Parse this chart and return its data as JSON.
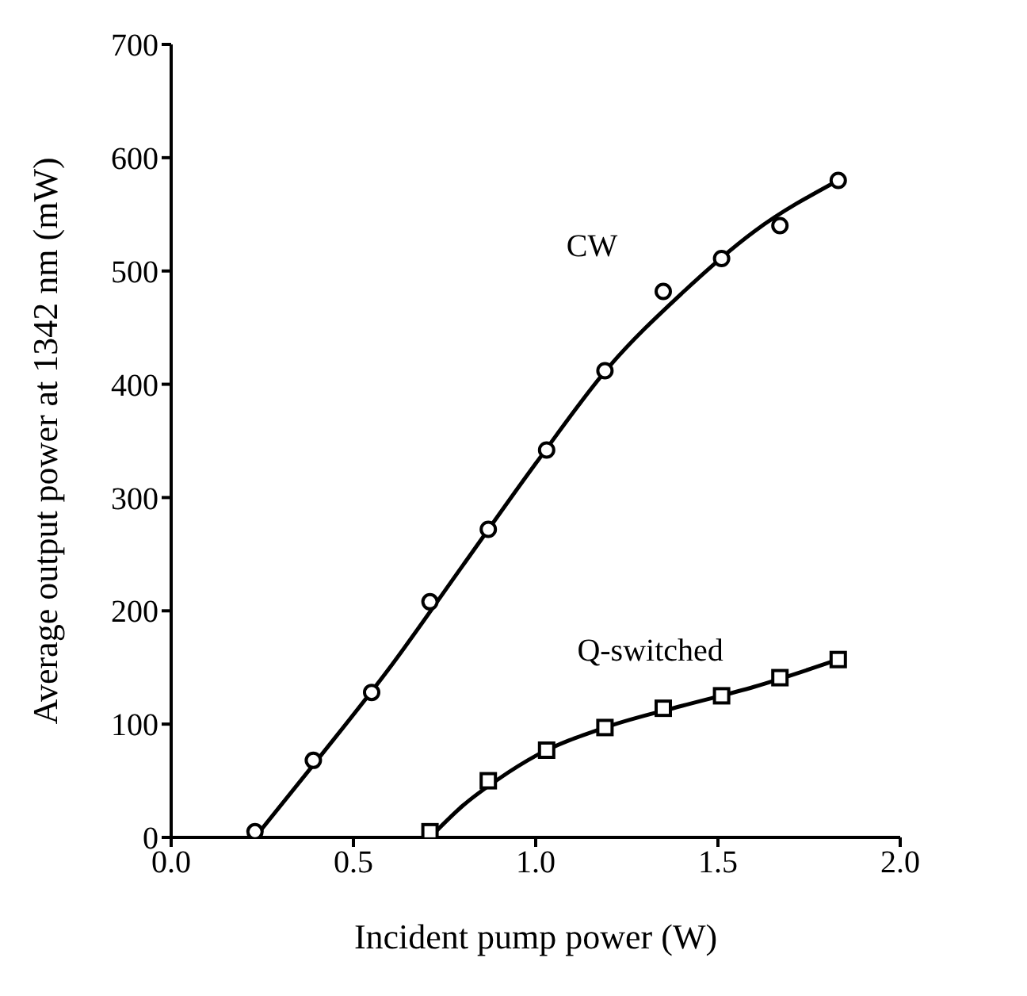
{
  "chart_data": {
    "type": "scatter",
    "xlabel": "Incident pump power (W)",
    "ylabel": "Average output power at 1342 nm (mW)",
    "xlim": [
      0,
      2
    ],
    "ylim": [
      0,
      700
    ],
    "xticks": [
      {
        "value": 0,
        "label": "0.0"
      },
      {
        "value": 0.5,
        "label": "0.5"
      },
      {
        "value": 1,
        "label": "1.0"
      },
      {
        "value": 1.5,
        "label": "1.5"
      },
      {
        "value": 2,
        "label": "2.0"
      }
    ],
    "yticks": [
      0,
      100,
      200,
      300,
      400,
      500,
      600,
      700
    ],
    "grid": false,
    "series": [
      {
        "name": "CW",
        "marker": "circle",
        "color": "#000000",
        "x": [
          0.23,
          0.39,
          0.55,
          0.71,
          0.87,
          1.03,
          1.19,
          1.35,
          1.51,
          1.67,
          1.83
        ],
        "values": [
          5,
          68,
          128,
          208,
          272,
          342,
          412,
          482,
          511,
          540,
          580
        ]
      },
      {
        "name": "Q-switched",
        "marker": "square",
        "color": "#000000",
        "x": [
          0.71,
          0.87,
          1.03,
          1.19,
          1.35,
          1.51,
          1.67,
          1.83
        ],
        "values": [
          5,
          50,
          77,
          97,
          114,
          125,
          141,
          157
        ]
      },
      {
        "type": "line",
        "marker": "none",
        "line_style": "solid",
        "color": "#000000",
        "x": [
          0.23,
          0.4,
          0.6,
          0.8,
          1.0,
          1.2,
          1.4,
          1.6,
          1.83
        ],
        "values": [
          0,
          68,
          150,
          240,
          330,
          415,
          480,
          535,
          580
        ]
      },
      {
        "type": "line",
        "marker": "none",
        "line_style": "solid",
        "color": "#000000",
        "x": [
          0.71,
          0.8,
          0.9,
          1.0,
          1.2,
          1.4,
          1.6,
          1.83
        ],
        "values": [
          0,
          28,
          52,
          72,
          98,
          116,
          133,
          157
        ]
      }
    ]
  }
}
